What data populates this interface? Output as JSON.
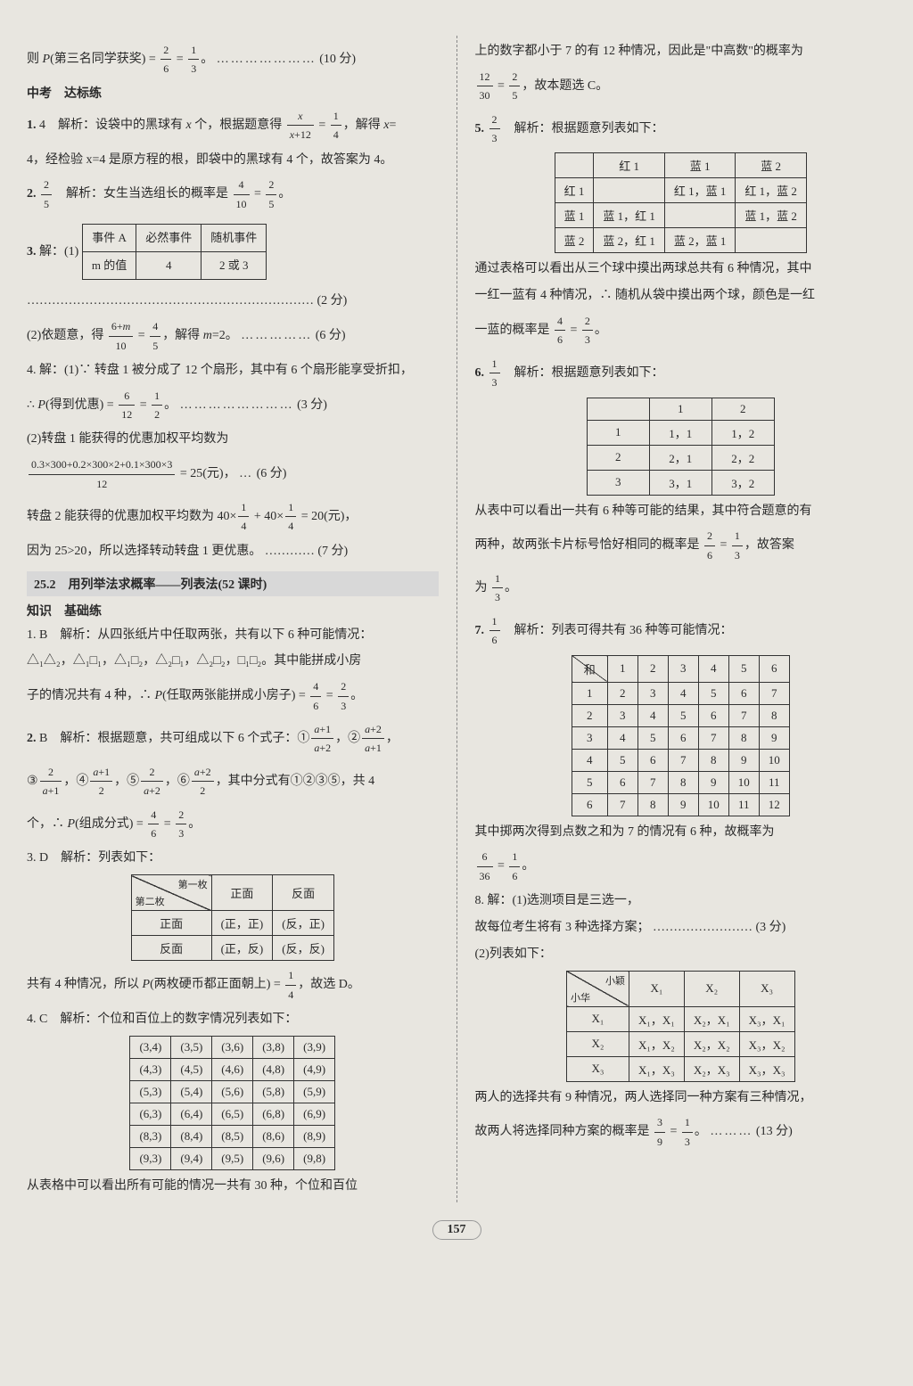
{
  "left": {
    "l1": "则 P(第三名同学获奖) = 2/6 = 1/3。 ………………… (10 分)",
    "h1": "中考　达标练",
    "p1_1": "1. 4　解析：设袋中的黑球有 x 个，根据题意得 x/(x+12) = 1/4，解得 x =",
    "p1_2": "4，经检验 x=4 是原方程的根，即袋中的黑球有 4 个，故答案为 4。",
    "p2": "2. 2/5　解析：女生当选组长的概率是 4/10 = 2/5。",
    "p3": "3. 解：(1)",
    "t1": {
      "r1": [
        "事件 A",
        "必然事件",
        "随机事件"
      ],
      "r2": [
        "m 的值",
        "4",
        "2 或 3"
      ]
    },
    "p3b": "…………………………………………………………… (2 分)",
    "p3c": "(2)依题意，得 (6+m)/10 = 4/5，解得 m=2。 …………… (6 分)",
    "p4a": "4. 解：(1)∵ 转盘 1 被分成了 12 个扇形，其中有 6 个扇形能享受折扣，",
    "p4b": "∴ P(得到优惠) = 6/12 = 1/2。 …………………… (3 分)",
    "p4c": "(2)转盘 1 能获得的优惠加权平均数为",
    "p4d": "(0.3×300+0.2×300×2+0.1×300×3)/12 = 25(元)， … (6 分)",
    "p4e": "转盘 2 能获得的优惠加权平均数为 40×1/4 + 40×1/4 = 20(元)，",
    "p4f": "因为 25>20，所以选择转动转盘 1 更优惠。 ………… (7 分)",
    "sec": "25.2　用列举法求概率——列表法(52 课时)",
    "sub": "知识　基础练",
    "b1a": "1. B　解析：从四张纸片中任取两张，共有以下 6 种可能情况：",
    "b1b": "△₁△₂，△₁□₁，△₁□₂，△₂□₁，△₂□₂，□₁□₂。其中能拼成小房",
    "b1c": "子的情况共有 4 种，∴ P(任取两张能拼成小房子) = 4/6 = 2/3。",
    "b2a": "2. B　解析：根据题意，共可组成以下 6 个式子：① (a+1)/(a+2)，② (a+2)/(a+1)，",
    "b2b": "③ 2/(a+1)，④ (a+1)/2，⑤ 2/(a+2)，⑥ (a+2)/2，其中分式有①②③⑤，共 4",
    "b2c": "个，∴ P(组成分式) = 4/6 = 2/3。",
    "b3": "3. D　解析：列表如下：",
    "t2": {
      "diag_tl": "第一枚",
      "diag_br": "第二枚",
      "c1": "正面",
      "c2": "反面",
      "r1": [
        "正面",
        "(正，正)",
        "(反，正)"
      ],
      "r2": [
        "反面",
        "(正，反)",
        "(反，反)"
      ]
    },
    "b3b": "共有 4 种情况，所以 P(两枚硬币都正面朝上) = 1/4，故选 D。",
    "b4": "4. C　解析：个位和百位上的数字情况列表如下：",
    "t3": {
      "rows": [
        [
          "(3,4)",
          "(3,5)",
          "(3,6)",
          "(3,8)",
          "(3,9)"
        ],
        [
          "(4,3)",
          "(4,5)",
          "(4,6)",
          "(4,8)",
          "(4,9)"
        ],
        [
          "(5,3)",
          "(5,4)",
          "(5,6)",
          "(5,8)",
          "(5,9)"
        ],
        [
          "(6,3)",
          "(6,4)",
          "(6,5)",
          "(6,8)",
          "(6,9)"
        ],
        [
          "(8,3)",
          "(8,4)",
          "(8,5)",
          "(8,6)",
          "(8,9)"
        ],
        [
          "(9,3)",
          "(9,4)",
          "(9,5)",
          "(9,6)",
          "(9,8)"
        ]
      ]
    },
    "b4b": "从表格中可以看出所有可能的情况一共有 30 种，个位和百位"
  },
  "right": {
    "r1": "上的数字都小于 7 的有 12 种情况，因此是\"中高数\"的概率为",
    "r1b": "12/30 = 2/5，故本题选 C。",
    "r5": "5. 2/3　解析：根据题意列表如下：",
    "t4": {
      "h": [
        "",
        "红 1",
        "蓝 1",
        "蓝 2"
      ],
      "rows": [
        [
          "红 1",
          "",
          "红 1，蓝 1",
          "红 1，蓝 2"
        ],
        [
          "蓝 1",
          "蓝 1，红 1",
          "",
          "蓝 1，蓝 2"
        ],
        [
          "蓝 2",
          "蓝 2，红 1",
          "蓝 2，蓝 1",
          ""
        ]
      ]
    },
    "r5b": "通过表格可以看出从三个球中摸出两球总共有 6 种情况，其中",
    "r5c": "一红一蓝有 4 种情况，∴ 随机从袋中摸出两个球，颜色是一红",
    "r5d": "一蓝的概率是 4/6 = 2/3。",
    "r6": "6. 1/3　解析：根据题意列表如下：",
    "t5": {
      "h": [
        "",
        "1",
        "2"
      ],
      "rows": [
        [
          "1",
          "1，1",
          "1，2"
        ],
        [
          "2",
          "2，1",
          "2，2"
        ],
        [
          "3",
          "3，1",
          "3，2"
        ]
      ]
    },
    "r6b": "从表中可以看出一共有 6 种等可能的结果，其中符合题意的有",
    "r6c": "两种，故两张卡片标号恰好相同的概率是 2/6 = 1/3，故答案",
    "r6d": "为 1/3。",
    "r7": "7. 1/6　解析：列表可得共有 36 种等可能情况：",
    "t6": {
      "diag": "和",
      "h": [
        "1",
        "2",
        "3",
        "4",
        "5",
        "6"
      ],
      "rows": [
        [
          "1",
          "2",
          "3",
          "4",
          "5",
          "6",
          "7"
        ],
        [
          "2",
          "3",
          "4",
          "5",
          "6",
          "7",
          "8"
        ],
        [
          "3",
          "4",
          "5",
          "6",
          "7",
          "8",
          "9"
        ],
        [
          "4",
          "5",
          "6",
          "7",
          "8",
          "9",
          "10"
        ],
        [
          "5",
          "6",
          "7",
          "8",
          "9",
          "10",
          "11"
        ],
        [
          "6",
          "7",
          "8",
          "9",
          "10",
          "11",
          "12"
        ]
      ]
    },
    "r7b": "其中掷两次得到点数之和为 7 的情况有 6 种，故概率为",
    "r7c": "6/36 = 1/6。",
    "r8a": "8. 解：(1)选测项目是三选一，",
    "r8b": "故每位考生将有 3 种选择方案； …………………… (3 分)",
    "r8c": "(2)列表如下：",
    "t7": {
      "diag_tl": "小颖",
      "diag_br": "小华",
      "h": [
        "X₁",
        "X₂",
        "X₃"
      ],
      "rows": [
        [
          "X₁",
          "X₁，X₁",
          "X₂，X₁",
          "X₃，X₁"
        ],
        [
          "X₂",
          "X₁，X₂",
          "X₂，X₂",
          "X₃，X₂"
        ],
        [
          "X₃",
          "X₁，X₃",
          "X₂，X₃",
          "X₃，X₃"
        ]
      ]
    },
    "r8d": "两人的选择共有 9 种情况，两人选择同一种方案有三种情况，",
    "r8e": "故两人将选择同种方案的概率是 3/9 = 1/3。 ……… (13 分)"
  },
  "pageNum": "157"
}
